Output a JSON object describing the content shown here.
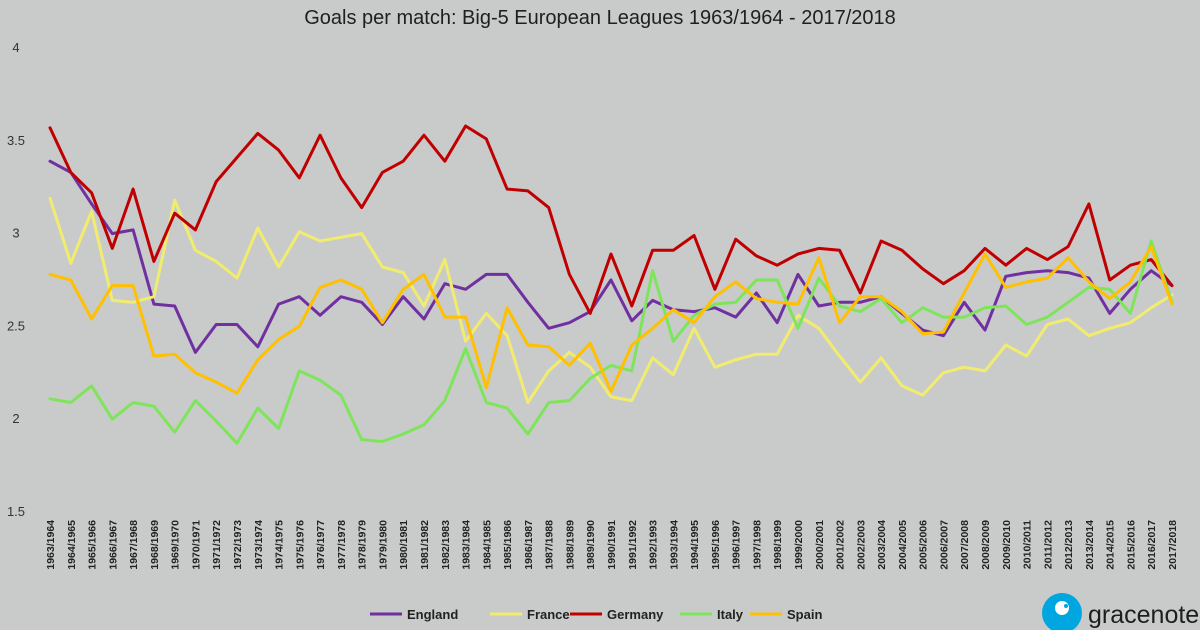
{
  "chart_data": {
    "type": "line",
    "title": "Goals per match: Big-5 European Leagues 1963/1964 - 2017/2018",
    "xlabel": "",
    "ylabel": "",
    "ylim": [
      1.5,
      4
    ],
    "yticks": [
      "1.5",
      "2",
      "2.5",
      "3",
      "3.5",
      "4"
    ],
    "grid": false,
    "legend_position": "bottom",
    "categories": [
      "1963/1964",
      "1964/1965",
      "1965/1966",
      "1966/1967",
      "1967/1968",
      "1968/1969",
      "1969/1970",
      "1970/1971",
      "1971/1972",
      "1972/1973",
      "1973/1974",
      "1974/1975",
      "1975/1976",
      "1976/1977",
      "1977/1978",
      "1978/1979",
      "1979/1980",
      "1980/1981",
      "1981/1982",
      "1982/1983",
      "1983/1984",
      "1984/1985",
      "1985/1986",
      "1986/1987",
      "1987/1988",
      "1988/1989",
      "1989/1990",
      "1990/1991",
      "1991/1992",
      "1992/1993",
      "1993/1994",
      "1994/1995",
      "1995/1996",
      "1996/1997",
      "1997/1998",
      "1998/1999",
      "1999/2000",
      "2000/2001",
      "2001/2002",
      "2002/2003",
      "2003/2004",
      "2004/2005",
      "2005/2006",
      "2006/2007",
      "2007/2008",
      "2008/2009",
      "2009/2010",
      "2010/2011",
      "2011/2012",
      "2012/2013",
      "2013/2014",
      "2014/2015",
      "2015/2016",
      "2016/2017",
      "2017/2018"
    ],
    "series": [
      {
        "name": "England",
        "color": "#7030a0",
        "values": [
          3.39,
          3.33,
          3.16,
          3.0,
          3.02,
          2.62,
          2.61,
          2.36,
          2.51,
          2.51,
          2.39,
          2.62,
          2.66,
          2.56,
          2.66,
          2.63,
          2.51,
          2.66,
          2.54,
          2.73,
          2.7,
          2.78,
          2.78,
          2.63,
          2.49,
          2.52,
          2.58,
          2.75,
          2.53,
          2.64,
          2.59,
          2.58,
          2.6,
          2.55,
          2.68,
          2.52,
          2.78,
          2.61,
          2.63,
          2.63,
          2.66,
          2.57,
          2.48,
          2.45,
          2.63,
          2.48,
          2.77,
          2.79,
          2.8,
          2.79,
          2.76,
          2.57,
          2.7,
          2.8,
          2.72
        ]
      },
      {
        "name": "France",
        "color": "#f2ec6e",
        "values": [
          3.19,
          2.84,
          3.12,
          2.64,
          2.63,
          2.66,
          3.18,
          2.91,
          2.85,
          2.76,
          3.03,
          2.82,
          3.01,
          2.96,
          2.98,
          3.0,
          2.82,
          2.79,
          2.61,
          2.86,
          2.42,
          2.57,
          2.45,
          2.09,
          2.26,
          2.36,
          2.28,
          2.12,
          2.1,
          2.33,
          2.24,
          2.49,
          2.28,
          2.32,
          2.35,
          2.35,
          2.56,
          2.49,
          2.34,
          2.2,
          2.33,
          2.18,
          2.13,
          2.25,
          2.28,
          2.26,
          2.4,
          2.34,
          2.51,
          2.54,
          2.45,
          2.49,
          2.52,
          2.6,
          2.67
        ]
      },
      {
        "name": "Germany",
        "color": "#c00000",
        "values": [
          3.57,
          3.33,
          3.22,
          2.92,
          3.24,
          2.85,
          3.11,
          3.02,
          3.28,
          3.41,
          3.54,
          3.45,
          3.3,
          3.53,
          3.3,
          3.14,
          3.33,
          3.39,
          3.53,
          3.39,
          3.58,
          3.51,
          3.24,
          3.23,
          3.14,
          2.78,
          2.57,
          2.89,
          2.61,
          2.91,
          2.91,
          2.99,
          2.7,
          2.97,
          2.88,
          2.83,
          2.89,
          2.92,
          2.91,
          2.68,
          2.96,
          2.91,
          2.81,
          2.73,
          2.8,
          2.92,
          2.83,
          2.92,
          2.86,
          2.93,
          3.16,
          2.75,
          2.83,
          2.86,
          2.72
        ]
      },
      {
        "name": "Italy",
        "color": "#7ee55a",
        "values": [
          2.11,
          2.09,
          2.18,
          2.0,
          2.09,
          2.07,
          1.93,
          2.1,
          1.99,
          1.87,
          2.06,
          1.95,
          2.26,
          2.21,
          2.13,
          1.89,
          1.88,
          1.92,
          1.97,
          2.1,
          2.38,
          2.09,
          2.06,
          1.92,
          2.09,
          2.1,
          2.22,
          2.29,
          2.26,
          2.8,
          2.42,
          2.56,
          2.62,
          2.63,
          2.75,
          2.75,
          2.49,
          2.76,
          2.61,
          2.58,
          2.65,
          2.52,
          2.6,
          2.55,
          2.55,
          2.6,
          2.61,
          2.51,
          2.55,
          2.63,
          2.71,
          2.7,
          2.57,
          2.96,
          2.63
        ]
      },
      {
        "name": "Spain",
        "color": "#ffc000",
        "values": [
          2.78,
          2.75,
          2.54,
          2.72,
          2.72,
          2.34,
          2.35,
          2.25,
          2.2,
          2.14,
          2.32,
          2.43,
          2.5,
          2.71,
          2.75,
          2.7,
          2.52,
          2.7,
          2.78,
          2.55,
          2.55,
          2.17,
          2.6,
          2.4,
          2.39,
          2.29,
          2.41,
          2.15,
          2.4,
          2.49,
          2.59,
          2.52,
          2.66,
          2.74,
          2.65,
          2.63,
          2.62,
          2.87,
          2.52,
          2.66,
          2.66,
          2.58,
          2.46,
          2.47,
          2.68,
          2.89,
          2.71,
          2.74,
          2.76,
          2.87,
          2.74,
          2.65,
          2.74,
          2.93,
          2.62
        ]
      }
    ]
  },
  "branding": {
    "logo_icon": "gracenote-logo-icon",
    "logo_text": "gracenote."
  }
}
